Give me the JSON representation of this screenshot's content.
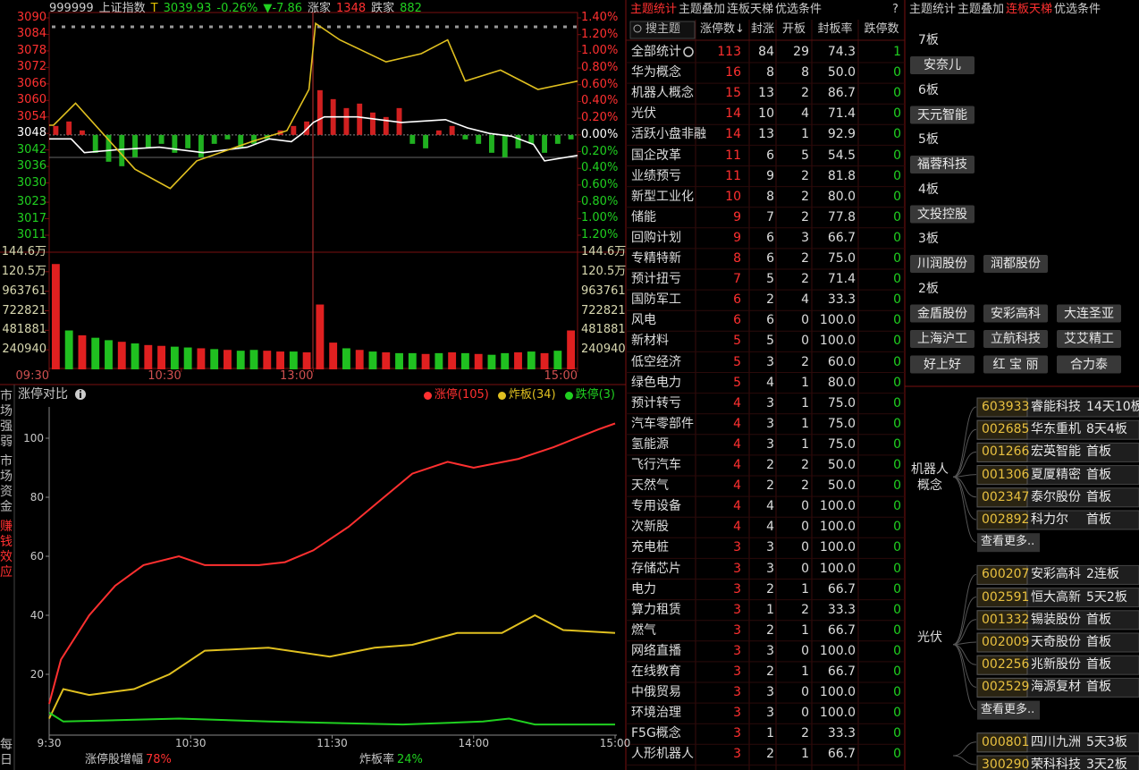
{
  "index_panel": {
    "header": {
      "code": "999999",
      "name": "上证指数",
      "flag": "T",
      "price": "3039.93",
      "change_pct": "-0.26%",
      "change": "▼-7.86",
      "up_label": "涨家",
      "up_count": 1348,
      "down_label": "跌家",
      "down_count": 882
    },
    "price_chart": {
      "type": "line",
      "xlim": [
        0,
        240
      ],
      "xticks": [
        {
          "value": 0,
          "label": "09:30"
        },
        {
          "value": 60,
          "label": "10:30"
        },
        {
          "value": 120,
          "label": "13:00"
        },
        {
          "value": 240,
          "label": "15:00"
        }
      ],
      "ylim": [
        3011,
        3090
      ],
      "yticks": [
        3090,
        3084,
        3078,
        3072,
        3066,
        3060,
        3054,
        3048,
        3042,
        3036,
        3030,
        3023,
        3017,
        3011
      ],
      "y2lim": [
        -1.2,
        1.4
      ],
      "y2ticks": [
        {
          "value": 1.4,
          "label": "1.40%"
        },
        {
          "value": 1.2,
          "label": "1.20%"
        },
        {
          "value": 1.0,
          "label": "1.00%"
        },
        {
          "value": 0.8,
          "label": "0.80%"
        },
        {
          "value": 0.6,
          "label": "0.60%"
        },
        {
          "value": 0.4,
          "label": "0.40%"
        },
        {
          "value": 0.2,
          "label": "0.20%"
        },
        {
          "value": 0,
          "label": "0.00%"
        },
        {
          "value": -0.2,
          "label": "0.20%"
        },
        {
          "value": -0.4,
          "label": "0.40%"
        },
        {
          "value": -0.6,
          "label": "0.60%"
        },
        {
          "value": -0.8,
          "label": "0.80%"
        },
        {
          "value": -1.0,
          "label": "1.00%"
        },
        {
          "value": -1.2,
          "label": "1.20%"
        }
      ],
      "series": [
        {
          "color": "#ffffff",
          "x": [
            0,
            10,
            16,
            30,
            50,
            70,
            90,
            100,
            110,
            115,
            120,
            125,
            140,
            160,
            180,
            190,
            200,
            210,
            220,
            225,
            240
          ],
          "values": [
            3046,
            3046,
            3041,
            3042,
            3043,
            3041,
            3043,
            3046,
            3045,
            3048,
            3052,
            3054,
            3054,
            3052,
            3053,
            3050,
            3048,
            3047,
            3044,
            3038,
            3040
          ]
        },
        {
          "color": "#e0c020",
          "x": [
            0,
            2,
            12,
            39,
            55,
            67,
            92,
            108,
            118,
            121,
            132,
            153,
            169,
            181,
            189,
            205,
            222,
            240
          ],
          "values": [
            3051,
            3051,
            3059,
            3035,
            3028,
            3038,
            3045,
            3049,
            3064,
            3088,
            3082,
            3074,
            3077,
            3082,
            3067,
            3071,
            3064,
            3067
          ]
        }
      ],
      "breadth": {
        "ylim": [
          -60,
          60
        ],
        "values": [
          10,
          15,
          5,
          -20,
          -30,
          -35,
          -25,
          -15,
          -10,
          -20,
          -15,
          -25,
          -10,
          -5,
          -15,
          -10,
          -5,
          5,
          10,
          15,
          50,
          40,
          30,
          35,
          25,
          20,
          30,
          -10,
          -15,
          5,
          10,
          -5,
          -10,
          -20,
          -25,
          -15,
          -10,
          -20,
          -10,
          -5
        ]
      }
    },
    "volume_chart": {
      "type": "bar",
      "ylim": [
        0,
        1446000
      ],
      "yticks": [
        {
          "value": 1446000,
          "label": "144.6万"
        },
        {
          "value": 1205000,
          "label": "120.5万"
        },
        963761,
        722821,
        481881,
        240940
      ],
      "values": [
        1300000,
        480000,
        420000,
        390000,
        360000,
        340000,
        320000,
        300000,
        290000,
        280000,
        270000,
        260000,
        250000,
        240000,
        230000,
        240000,
        230000,
        220000,
        220000,
        210000,
        800000,
        330000,
        260000,
        240000,
        220000,
        210000,
        200000,
        200000,
        190000,
        200000,
        210000,
        200000,
        190000,
        180000,
        200000,
        210000,
        220000,
        200000,
        230000,
        480000
      ],
      "colors": [
        "#e02020",
        "#20c020",
        "#e02020",
        "#20c020",
        "#20c020",
        "#e02020",
        "#20c020",
        "#e02020",
        "#e02020",
        "#20c020",
        "#20c020",
        "#e02020",
        "#20c020",
        "#e02020",
        "#20c020",
        "#20c020",
        "#e02020",
        "#e02020",
        "#20c020",
        "#e02020",
        "#e02020",
        "#e02020",
        "#20c020",
        "#e02020",
        "#20c020",
        "#e02020",
        "#20c020",
        "#20c020",
        "#e02020",
        "#20c020",
        "#e02020",
        "#20c020",
        "#e02020",
        "#20c020",
        "#20c020",
        "#e02020",
        "#20c020",
        "#e02020",
        "#20c020",
        "#e02020"
      ]
    }
  },
  "side_tabs": {
    "items": [
      "市场强弱",
      "市场资金",
      "赚钱效应",
      "每日"
    ],
    "active": 2
  },
  "limit_chart": {
    "type": "line",
    "title": "涨停对比",
    "xlim": [
      0,
      240
    ],
    "xticks": [
      {
        "value": 0,
        "label": "9:30"
      },
      {
        "value": 60,
        "label": "10:30"
      },
      {
        "value": 120,
        "label": "11:30"
      },
      {
        "value": 180,
        "label": "14:00"
      },
      {
        "value": 240,
        "label": "15:00"
      }
    ],
    "ylim": [
      0,
      110
    ],
    "yticks": [
      20,
      40,
      60,
      80,
      100
    ],
    "series": [
      {
        "name": "涨停(105)",
        "color": "#ff3030",
        "x": [
          0,
          5,
          17,
          28,
          40,
          55,
          66,
          89,
          100,
          112,
          127,
          142,
          154,
          169,
          180,
          199,
          214,
          233,
          240
        ],
        "values": [
          10,
          25,
          40,
          50,
          57,
          60,
          57,
          57,
          58,
          62,
          70,
          80,
          88,
          92,
          90,
          93,
          97,
          103,
          105
        ]
      },
      {
        "name": "炸板(34)",
        "color": "#e0c020",
        "x": [
          0,
          6,
          17,
          36,
          51,
          66,
          93,
          119,
          138,
          154,
          173,
          192,
          206,
          218,
          240
        ],
        "values": [
          5,
          15,
          13,
          15,
          20,
          28,
          29,
          26,
          29,
          30,
          34,
          34,
          40,
          35,
          34
        ]
      },
      {
        "name": "跌停(3)",
        "color": "#20d020",
        "x": [
          0,
          6,
          55,
          93,
          150,
          184,
          195,
          206,
          240
        ],
        "values": [
          7,
          4,
          5,
          4,
          3,
          4,
          5,
          3,
          3
        ]
      }
    ],
    "footer": [
      {
        "label": "涨停股增幅",
        "value": "78%",
        "color": "#ff3030"
      },
      {
        "label": "炸板率",
        "value": "24%",
        "color": "#20d020"
      }
    ]
  },
  "theme_table": {
    "tabs": [
      "主题统计",
      "主题叠加",
      "连板天梯",
      "优选条件"
    ],
    "active_tab": 0,
    "help": "?",
    "search": "搜主题",
    "columns": [
      "涨停数↓",
      "封涨",
      "开板",
      "封板率",
      "跌停数"
    ],
    "rows": [
      [
        "全部统计",
        113,
        84,
        29,
        "74.3",
        1
      ],
      [
        "华为概念",
        16,
        8,
        8,
        "50.0",
        0
      ],
      [
        "机器人概念",
        15,
        13,
        2,
        "86.7",
        0
      ],
      [
        "光伏",
        14,
        10,
        4,
        "71.4",
        0
      ],
      [
        "活跃小盘非融",
        14,
        13,
        1,
        "92.9",
        0
      ],
      [
        "国企改革",
        11,
        6,
        5,
        "54.5",
        0
      ],
      [
        "业绩预亏",
        11,
        9,
        2,
        "81.8",
        0
      ],
      [
        "新型工业化",
        10,
        8,
        2,
        "80.0",
        0
      ],
      [
        "储能",
        9,
        7,
        2,
        "77.8",
        0
      ],
      [
        "回购计划",
        9,
        6,
        3,
        "66.7",
        0
      ],
      [
        "专精特新",
        8,
        6,
        2,
        "75.0",
        0
      ],
      [
        "预计扭亏",
        7,
        5,
        2,
        "71.4",
        0
      ],
      [
        "国防军工",
        6,
        2,
        4,
        "33.3",
        0
      ],
      [
        "风电",
        6,
        6,
        0,
        "100.0",
        0
      ],
      [
        "新材料",
        5,
        5,
        0,
        "100.0",
        0
      ],
      [
        "低空经济",
        5,
        3,
        2,
        "60.0",
        0
      ],
      [
        "绿色电力",
        5,
        4,
        1,
        "80.0",
        0
      ],
      [
        "预计转亏",
        4,
        3,
        1,
        "75.0",
        0
      ],
      [
        "汽车零部件",
        4,
        3,
        1,
        "75.0",
        0
      ],
      [
        "氢能源",
        4,
        3,
        1,
        "75.0",
        0
      ],
      [
        "飞行汽车",
        4,
        2,
        2,
        "50.0",
        0
      ],
      [
        "天然气",
        4,
        2,
        2,
        "50.0",
        0
      ],
      [
        "专用设备",
        4,
        4,
        0,
        "100.0",
        0
      ],
      [
        "次新股",
        4,
        4,
        0,
        "100.0",
        0
      ],
      [
        "充电桩",
        3,
        3,
        0,
        "100.0",
        0
      ],
      [
        "存储芯片",
        3,
        3,
        0,
        "100.0",
        0
      ],
      [
        "电力",
        3,
        2,
        1,
        "66.7",
        0
      ],
      [
        "算力租赁",
        3,
        1,
        2,
        "33.3",
        0
      ],
      [
        "燃气",
        3,
        2,
        1,
        "66.7",
        0
      ],
      [
        "网络直播",
        3,
        3,
        0,
        "100.0",
        0
      ],
      [
        "在线教育",
        3,
        2,
        1,
        "66.7",
        0
      ],
      [
        "中俄贸易",
        3,
        3,
        0,
        "100.0",
        0
      ],
      [
        "环境治理",
        3,
        3,
        0,
        "100.0",
        0
      ],
      [
        "F5G概念",
        3,
        1,
        2,
        "33.3",
        0
      ],
      [
        "人形机器人",
        3,
        2,
        1,
        "66.7",
        0
      ]
    ]
  },
  "ladder": {
    "tabs": [
      "主题统计",
      "主题叠加",
      "连板天梯",
      "优选条件"
    ],
    "active_tab": 2,
    "levels": [
      {
        "label": "7板",
        "stocks": [
          "安奈儿"
        ]
      },
      {
        "label": "6板",
        "stocks": [
          "天元智能"
        ]
      },
      {
        "label": "5板",
        "stocks": [
          "福蓉科技"
        ]
      },
      {
        "label": "4板",
        "stocks": [
          "文投控股"
        ]
      },
      {
        "label": "3板",
        "stocks": [
          "川润股份",
          "润都股份"
        ]
      },
      {
        "label": "2板",
        "stocks": [
          "金盾股份",
          "安彩高科",
          "大连圣亚",
          "上海沪工",
          "立航科技",
          "艾艾精工",
          "好上好",
          "红 宝 丽",
          "合力泰"
        ]
      }
    ],
    "groups": [
      {
        "theme": "机器人概念",
        "stocks": [
          {
            "code": "603933",
            "name": "睿能科技",
            "board": "14天10板"
          },
          {
            "code": "002685",
            "name": "华东重机",
            "board": "8天4板"
          },
          {
            "code": "001266",
            "name": "宏英智能",
            "board": "首板"
          },
          {
            "code": "001306",
            "name": "夏厦精密",
            "board": "首板"
          },
          {
            "code": "002347",
            "name": "泰尔股份",
            "board": "首板"
          },
          {
            "code": "002892",
            "name": "科力尔",
            "board": "首板"
          }
        ],
        "more": "查看更多.."
      },
      {
        "theme": "光伏",
        "stocks": [
          {
            "code": "600207",
            "name": "安彩高科",
            "board": "2连板"
          },
          {
            "code": "002591",
            "name": "恒大高新",
            "board": "5天2板"
          },
          {
            "code": "001332",
            "name": "锡装股份",
            "board": "首板"
          },
          {
            "code": "002009",
            "name": "天奇股份",
            "board": "首板"
          },
          {
            "code": "002256",
            "name": "兆新股份",
            "board": "首板"
          },
          {
            "code": "002529",
            "name": "海源复材",
            "board": "首板"
          }
        ],
        "more": "查看更多.."
      },
      {
        "stocks": [
          {
            "code": "000801",
            "name": "四川九洲",
            "board": "5天3板"
          },
          {
            "code": "300290",
            "name": "荣科科技",
            "board": "3天2板"
          }
        ]
      }
    ]
  }
}
